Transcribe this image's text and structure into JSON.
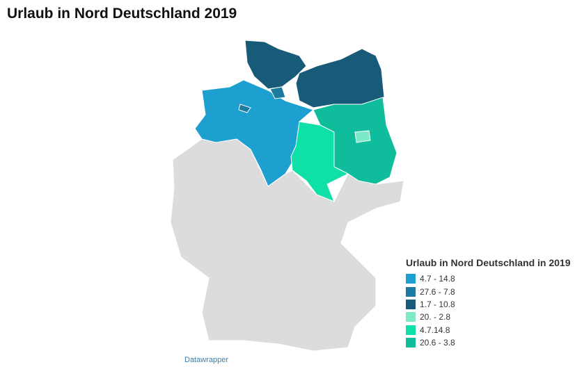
{
  "header": {
    "title": "Urlaub in Nord Deutschland 2019"
  },
  "legend": {
    "title": "Urlaub in Nord Deutschland in 2019",
    "items": [
      {
        "label": "4.7 - 14.8",
        "color": "#1d9fd0"
      },
      {
        "label": "27.6 - 7.8",
        "color": "#1c7b9e"
      },
      {
        "label": "1.7 - 10.8",
        "color": "#185b78"
      },
      {
        "label": "20. - 2.8",
        "color": "#7de9c9"
      },
      {
        "label": "4.7.14.8",
        "color": "#0ee0a8"
      },
      {
        "label": "20.6 - 3.8",
        "color": "#0fbd9c"
      }
    ]
  },
  "footer": {
    "credit": "Datawrapper"
  }
}
